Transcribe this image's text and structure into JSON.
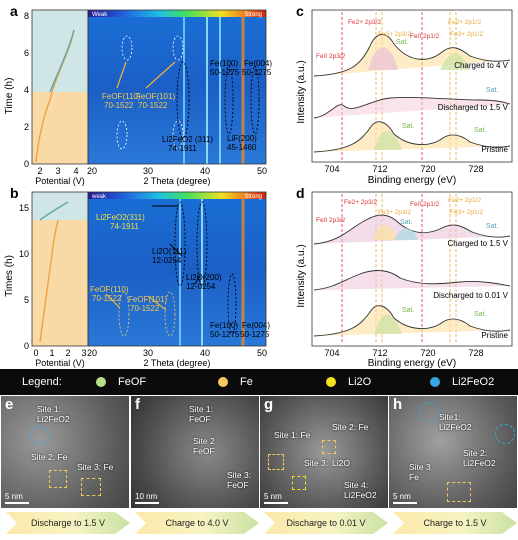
{
  "panels": {
    "a": {
      "label": "a",
      "y_title": "Time (h)",
      "potential_label": "Potential (V)",
      "theta_label": "2 Theta (degree)",
      "yticks": [
        "0",
        "2",
        "4",
        "6",
        "8"
      ],
      "pticks": [
        "2",
        "3",
        "4"
      ],
      "tticks": [
        "20",
        "30",
        "40",
        "50"
      ],
      "bar_weak": "Weak",
      "bar_strong": "Strong",
      "peaks": [
        {
          "name": "FeOF(110)",
          "card": "70-1522"
        },
        {
          "name": "FeOF(101)",
          "card": "70-1522"
        },
        {
          "name": "Li2FeO2 (311)",
          "card": "74-1911"
        },
        {
          "name": "Fe(100)",
          "card": "50-1275"
        },
        {
          "name": "Fe(004)",
          "card": "50-1275"
        },
        {
          "name": "LiF(200)",
          "card": "45-1460"
        }
      ]
    },
    "b": {
      "label": "b",
      "y_title": "Times (h)",
      "potential_label": "Potential (V)",
      "theta_label": "2 Theta (degree)",
      "yticks": [
        "0",
        "5",
        "10",
        "15"
      ],
      "pticks": [
        "0",
        "1",
        "2",
        "3"
      ],
      "tticks": [
        "20",
        "30",
        "40",
        "50"
      ],
      "bar_weak": "weak",
      "bar_strong": "Strong",
      "peaks": [
        {
          "name": "Li2FeO2(311)",
          "card": "74-1911"
        },
        {
          "name": "Li2O(111)",
          "card": "12-0254"
        },
        {
          "name": "FeOF(110)",
          "card": "70-1522"
        },
        {
          "name": "FeOF(101)",
          "card": "70-1522"
        },
        {
          "name": "Li2O(200)",
          "card": "12-0254"
        },
        {
          "name": "Fe(100)",
          "card": "50-1275"
        },
        {
          "name": "Fe(004)",
          "card": "50-1275"
        }
      ]
    },
    "c": {
      "label": "c",
      "y_title": "Intensity (a.u.)",
      "x_title": "Binding energy (eV)",
      "xticks": [
        "704",
        "712",
        "720",
        "728"
      ],
      "states": [
        "Charged to 4 V",
        "Discharged to 1.5 V",
        "Pristine"
      ],
      "sat": "Sat.",
      "labels": {
        "fe0_32": "Fe0 2p3/2",
        "fe2_32": "Fe2+ 2p3/2",
        "fe3_32": "Fe3+ 2p3/2",
        "fe0_12": "Fe0 2p1/2",
        "fe2_12": "Fe2+ 2p1/2",
        "fe3_12": "Fe3+ 2p1/2"
      }
    },
    "d": {
      "label": "d",
      "y_title": "Intensity (a.u.)",
      "x_title": "Binding energy (eV)",
      "xticks": [
        "704",
        "712",
        "720",
        "728"
      ],
      "states": [
        "Charged to 1.5 V",
        "Discharged to 0.01 V",
        "Pristine"
      ],
      "sat": "Sat."
    }
  },
  "legend": {
    "title": "Legend:",
    "items": [
      {
        "label": "FeOF",
        "color": "#b8e08a"
      },
      {
        "label": "Fe",
        "color": "#f6c75c"
      },
      {
        "label": "Li2O",
        "color": "#f4e21c"
      },
      {
        "label": "Li2FeO2",
        "color": "#36a7e0"
      }
    ]
  },
  "tem": [
    {
      "label": "e",
      "scale": "5 nm",
      "annotations": [
        "Site 1:",
        "Li2FeO2",
        "Site 2: Fe",
        "Site 3: Fe"
      ]
    },
    {
      "label": "f",
      "scale": "10 nm",
      "annotations": [
        "Site 1:",
        "FeOF",
        "Site 2",
        "FeOF",
        "Site 3:",
        "FeOF"
      ]
    },
    {
      "label": "g",
      "scale": "5 nm",
      "annotations": [
        "Site 1: Fe",
        "Site 2: Fe",
        "Site 3:",
        "Li2O",
        "Site 4:",
        "Li2FeO2"
      ]
    },
    {
      "label": "h",
      "scale": "5 nm",
      "annotations": [
        "Site1:",
        "Li2FeO2",
        "Site 2:",
        "Li2FeO2",
        "Site 3:",
        "Fe"
      ]
    }
  ],
  "steps": [
    "Discharge to 1.5 V",
    "Charge to 4.0 V",
    "Discharge to 0.01 V",
    "Charge to 1.5 V"
  ]
}
